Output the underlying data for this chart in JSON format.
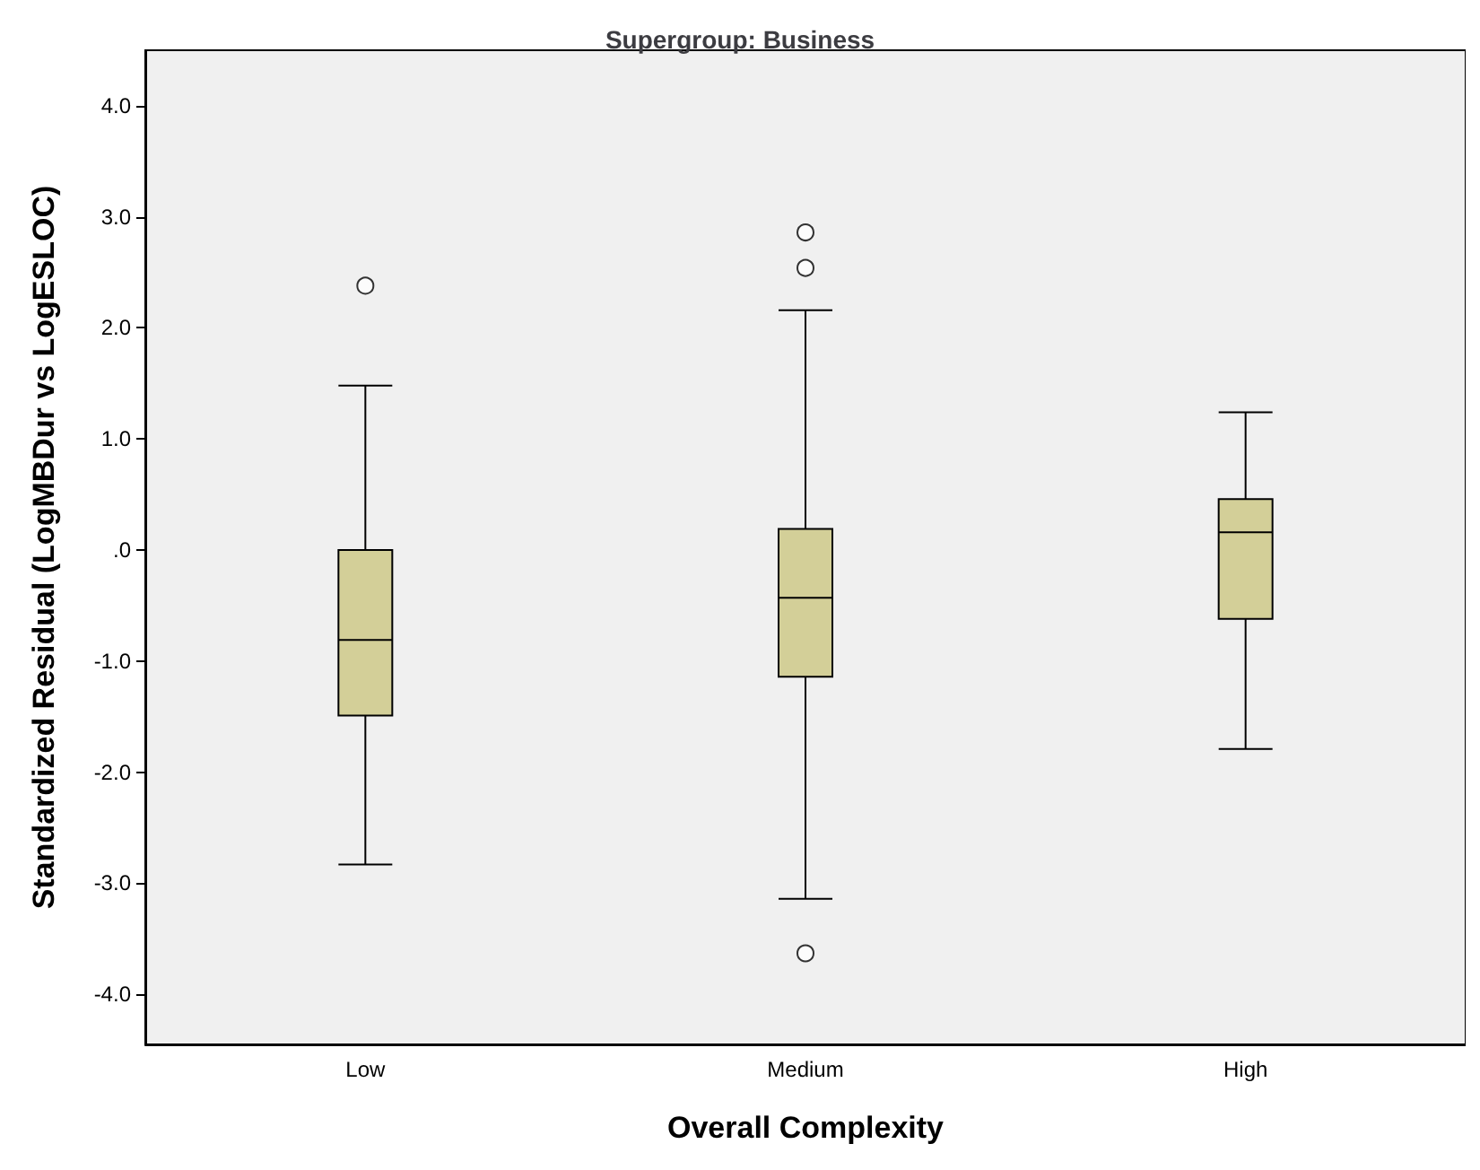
{
  "chart_data": {
    "type": "box",
    "title": "Supergroup: Business",
    "xlabel": "Overall Complexity",
    "ylabel": "Standardized Residual (LogMBDur vs LogESLOC)",
    "categories": [
      "Low",
      "Medium",
      "High"
    ],
    "series": [
      {
        "color": "#d3cf98",
        "boxes": [
          {
            "low": -2.83,
            "q1": -1.49,
            "median": -0.81,
            "q3": 0.0,
            "high": 1.48,
            "outliers": [
              2.38
            ]
          },
          {
            "low": -3.14,
            "q1": -1.14,
            "median": -0.43,
            "q3": 0.19,
            "high": 2.16,
            "outliers": [
              2.86,
              2.54,
              -3.63
            ]
          },
          {
            "low": -1.79,
            "q1": -0.62,
            "median": 0.16,
            "q3": 0.46,
            "high": 1.24
          }
        ]
      }
    ],
    "ylim": [
      -4.45,
      4.5
    ],
    "yticks": [
      {
        "value": -4,
        "label": "-4.0"
      },
      {
        "value": -3,
        "label": "-3.0"
      },
      {
        "value": -2,
        "label": "-2.0"
      },
      {
        "value": -1,
        "label": "-1.0"
      },
      {
        "value": 0,
        "label": ".0"
      },
      {
        "value": 1,
        "label": "1.0"
      },
      {
        "value": 2,
        "label": "2.0"
      },
      {
        "value": 3,
        "label": "3.0"
      },
      {
        "value": 4,
        "label": "4.0"
      }
    ],
    "grid": false,
    "marker": "circle"
  }
}
